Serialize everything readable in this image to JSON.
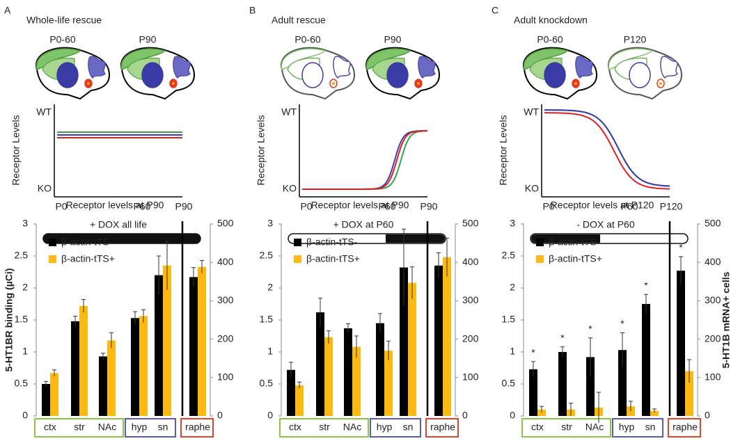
{
  "panels": [
    {
      "letter": "A",
      "title": "Whole-life rescue",
      "stages": [
        "P0-60",
        "P90"
      ],
      "ylabel": "Receptor Levels",
      "levels": [
        "WT",
        "KO"
      ],
      "timepoints": [
        "P0",
        "P60",
        "P90"
      ],
      "treatment": "+ DOX all life"
    },
    {
      "letter": "B",
      "title": "Adult rescue",
      "stages": [
        "P0-60",
        "P90"
      ],
      "ylabel": "Receptor Levels",
      "levels": [
        "WT",
        "KO"
      ],
      "timepoints": [
        "P0",
        "P60",
        "P90"
      ],
      "treatment": "+ DOX at P60"
    },
    {
      "letter": "C",
      "title": "Adult knockdown",
      "stages": [
        "P0-60",
        "P120"
      ],
      "ylabel": "Receptor Levels",
      "levels": [
        "WT",
        "KO"
      ],
      "timepoints": [
        "P0",
        "P60",
        "P120"
      ],
      "treatment": "- DOX at P60"
    }
  ],
  "chart_data": [
    {
      "type": "bar",
      "title": "Receptor levels at P90",
      "ylabel": "5-HT1BR binding (µCi)",
      "categories": [
        "ctx",
        "str",
        "NAc",
        "hyp",
        "sn",
        "raphe"
      ],
      "series": [
        {
          "name": "β-actin-tTS-",
          "color": "#000000",
          "values": [
            0.5,
            1.48,
            0.93,
            1.53,
            2.2,
            2.17
          ],
          "errors": [
            0.04,
            0.08,
            0.05,
            0.1,
            0.3,
            0.15
          ]
        },
        {
          "name": "β-actin-tTS+",
          "color": "#fdb913",
          "values": [
            0.67,
            1.72,
            1.18,
            1.56,
            2.35,
            2.33
          ],
          "errors": [
            0.05,
            0.1,
            0.12,
            0.1,
            0.38,
            0.1
          ]
        }
      ],
      "ylim": [
        0,
        3
      ],
      "yticks": [
        0,
        0.5,
        1,
        1.5,
        2,
        2.5,
        3
      ],
      "y2lim": [
        0,
        500
      ],
      "y2ticks": [
        0,
        100,
        200,
        300,
        400,
        500
      ]
    },
    {
      "type": "bar",
      "title": "Receptor levels at P90",
      "categories": [
        "ctx",
        "str",
        "NAc",
        "hyp",
        "sn",
        "raphe"
      ],
      "series": [
        {
          "name": "β-actin-tTS-",
          "color": "#000000",
          "values": [
            0.72,
            1.62,
            1.37,
            1.45,
            2.32,
            2.35
          ],
          "errors": [
            0.12,
            0.22,
            0.07,
            0.15,
            0.6,
            0.2
          ]
        },
        {
          "name": "β-actin-tTS+",
          "color": "#fdb913",
          "values": [
            0.48,
            1.23,
            1.08,
            1.02,
            2.08,
            2.48
          ],
          "errors": [
            0.05,
            0.1,
            0.17,
            0.15,
            0.25,
            0.3
          ]
        }
      ],
      "ylim": [
        0,
        3
      ],
      "yticks": [
        0,
        0.5,
        1,
        1.5,
        2,
        2.5,
        3
      ],
      "y2lim": [
        0,
        500
      ],
      "y2ticks": [
        0,
        100,
        200,
        300,
        400,
        500
      ]
    },
    {
      "type": "bar",
      "title": "Receptor levels at P120",
      "y2label": "5-HT1B mRNA+ cells",
      "categories": [
        "ctx",
        "str",
        "NAc",
        "hyp",
        "sn",
        "raphe"
      ],
      "series": [
        {
          "name": "β-actin-tTS-",
          "color": "#000000",
          "values": [
            0.73,
            1.0,
            0.92,
            1.03,
            1.75,
            2.27
          ],
          "errors": [
            0.12,
            0.08,
            0.3,
            0.27,
            0.15,
            0.22
          ]
        },
        {
          "name": "β-actin-tTS+",
          "color": "#fdb913",
          "values": [
            0.1,
            0.1,
            0.13,
            0.15,
            0.08,
            0.7
          ],
          "errors": [
            0.05,
            0.1,
            0.24,
            0.08,
            0.03,
            0.18
          ]
        }
      ],
      "significance": [
        "*",
        "*",
        "*",
        "*",
        "*",
        "*"
      ],
      "ylim": [
        0,
        3
      ],
      "yticks": [
        0,
        0.5,
        1,
        1.5,
        2,
        2.5,
        3
      ],
      "y2lim": [
        0,
        500
      ],
      "y2ticks": [
        0,
        100,
        200,
        300,
        400,
        500
      ]
    }
  ]
}
